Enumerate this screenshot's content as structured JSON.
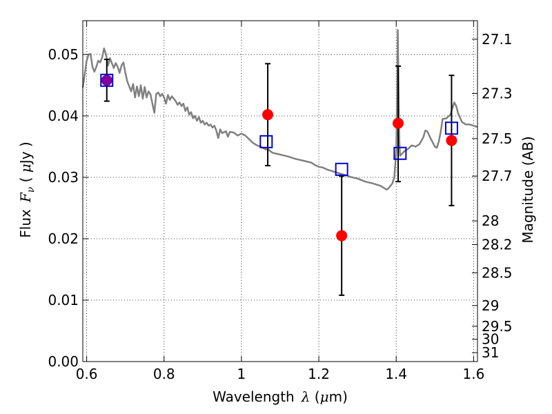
{
  "chart_data": {
    "type": "scatter",
    "xlabel_prefix": "Wavelength",
    "xlabel_symbol": "λ",
    "xlabel_unit_open": " (",
    "xlabel_unit_mu": "μ",
    "xlabel_unit_close": "m)",
    "ylabel_prefix": "Flux",
    "ylabel_symbol": "F",
    "ylabel_subscript": "ν",
    "ylabel_unit_open": " ( ",
    "ylabel_unit_mu": "μ",
    "ylabel_unit_close": "Jy )",
    "y2label": "Magnitude (AB)",
    "xlim": [
      0.59,
      1.61
    ],
    "ylim": [
      0.0,
      0.0555
    ],
    "xticks": [
      {
        "v": 0.6,
        "label": "0.6"
      },
      {
        "v": 0.8,
        "label": "0.8"
      },
      {
        "v": 1.0,
        "label": "1"
      },
      {
        "v": 1.2,
        "label": "1.2"
      },
      {
        "v": 1.4,
        "label": "1.4"
      },
      {
        "v": 1.6,
        "label": "1.6"
      }
    ],
    "yticks": [
      {
        "v": 0.0,
        "label": "0.00"
      },
      {
        "v": 0.01,
        "label": "0.01"
      },
      {
        "v": 0.02,
        "label": "0.02"
      },
      {
        "v": 0.03,
        "label": "0.03"
      },
      {
        "v": 0.04,
        "label": "0.04"
      },
      {
        "v": 0.05,
        "label": "0.05"
      }
    ],
    "y2ticks": [
      {
        "v": 27.1,
        "label": "27.1"
      },
      {
        "v": 27.3,
        "label": "27.3"
      },
      {
        "v": 27.5,
        "label": "27.5"
      },
      {
        "v": 27.7,
        "label": "27.7"
      },
      {
        "v": 28.0,
        "label": "28"
      },
      {
        "v": 28.2,
        "label": "28.2"
      },
      {
        "v": 28.5,
        "label": "28.5"
      },
      {
        "v": 29.0,
        "label": "29"
      },
      {
        "v": 29.5,
        "label": "29.5"
      },
      {
        "v": 30.0,
        "label": "30"
      },
      {
        "v": 31.0,
        "label": "31"
      }
    ],
    "grid": true,
    "colors": {
      "sed": "#808080",
      "observed": "#ff0000",
      "model": "#0000cc",
      "errorbar": "#000000",
      "overlap": "#8000a0"
    },
    "sed_curve": [
      [
        0.59,
        0.0446
      ],
      [
        0.595,
        0.0468
      ],
      [
        0.6,
        0.049
      ],
      [
        0.605,
        0.05
      ],
      [
        0.61,
        0.0501
      ],
      [
        0.615,
        0.048
      ],
      [
        0.62,
        0.0472
      ],
      [
        0.625,
        0.048
      ],
      [
        0.63,
        0.049
      ],
      [
        0.635,
        0.0487
      ],
      [
        0.64,
        0.0495
      ],
      [
        0.645,
        0.051
      ],
      [
        0.65,
        0.05
      ],
      [
        0.655,
        0.0482
      ],
      [
        0.66,
        0.0494
      ],
      [
        0.665,
        0.0486
      ],
      [
        0.67,
        0.0478
      ],
      [
        0.675,
        0.0486
      ],
      [
        0.68,
        0.048
      ],
      [
        0.685,
        0.047
      ],
      [
        0.69,
        0.0482
      ],
      [
        0.695,
        0.0487
      ],
      [
        0.7,
        0.047
      ],
      [
        0.705,
        0.0456
      ],
      [
        0.71,
        0.0448
      ],
      [
        0.715,
        0.044
      ],
      [
        0.72,
        0.0452
      ],
      [
        0.725,
        0.043
      ],
      [
        0.73,
        0.0448
      ],
      [
        0.735,
        0.0432
      ],
      [
        0.74,
        0.045
      ],
      [
        0.745,
        0.0428
      ],
      [
        0.75,
        0.0447
      ],
      [
        0.755,
        0.043
      ],
      [
        0.76,
        0.044
      ],
      [
        0.765,
        0.0435
      ],
      [
        0.77,
        0.042
      ],
      [
        0.775,
        0.0405
      ],
      [
        0.78,
        0.0436
      ],
      [
        0.785,
        0.0438
      ],
      [
        0.79,
        0.0432
      ],
      [
        0.795,
        0.0436
      ],
      [
        0.8,
        0.043
      ],
      [
        0.805,
        0.042
      ],
      [
        0.81,
        0.0434
      ],
      [
        0.815,
        0.0426
      ],
      [
        0.82,
        0.0432
      ],
      [
        0.825,
        0.0428
      ],
      [
        0.83,
        0.0424
      ],
      [
        0.835,
        0.0418
      ],
      [
        0.84,
        0.0422
      ],
      [
        0.845,
        0.0416
      ],
      [
        0.85,
        0.042
      ],
      [
        0.855,
        0.0408
      ],
      [
        0.86,
        0.0414
      ],
      [
        0.865,
        0.0402
      ],
      [
        0.87,
        0.0406
      ],
      [
        0.875,
        0.0396
      ],
      [
        0.88,
        0.04
      ],
      [
        0.885,
        0.0392
      ],
      [
        0.89,
        0.0398
      ],
      [
        0.895,
        0.0389
      ],
      [
        0.9,
        0.0392
      ],
      [
        0.905,
        0.0386
      ],
      [
        0.91,
        0.0389
      ],
      [
        0.915,
        0.0384
      ],
      [
        0.92,
        0.0386
      ],
      [
        0.925,
        0.0381
      ],
      [
        0.93,
        0.0384
      ],
      [
        0.935,
        0.0376
      ],
      [
        0.94,
        0.0364
      ],
      [
        0.945,
        0.0378
      ],
      [
        0.95,
        0.0372
      ],
      [
        0.96,
        0.0375
      ],
      [
        0.965,
        0.0366
      ],
      [
        0.97,
        0.0374
      ],
      [
        0.98,
        0.0373
      ],
      [
        0.99,
        0.0368
      ],
      [
        1.0,
        0.0371
      ],
      [
        1.01,
        0.0368
      ],
      [
        1.02,
        0.0362
      ],
      [
        1.03,
        0.0356
      ],
      [
        1.04,
        0.0352
      ],
      [
        1.05,
        0.035
      ],
      [
        1.06,
        0.0346
      ],
      [
        1.07,
        0.0345
      ],
      [
        1.08,
        0.034
      ],
      [
        1.1,
        0.0337
      ],
      [
        1.12,
        0.0334
      ],
      [
        1.14,
        0.033
      ],
      [
        1.16,
        0.0327
      ],
      [
        1.18,
        0.0324
      ],
      [
        1.19,
        0.032
      ],
      [
        1.2,
        0.0317
      ],
      [
        1.21,
        0.0316
      ],
      [
        1.22,
        0.0313
      ],
      [
        1.24,
        0.0309
      ],
      [
        1.26,
        0.0305
      ],
      [
        1.28,
        0.0301
      ],
      [
        1.3,
        0.0298
      ],
      [
        1.32,
        0.0293
      ],
      [
        1.34,
        0.029
      ],
      [
        1.36,
        0.0286
      ],
      [
        1.37,
        0.0282
      ],
      [
        1.375,
        0.028
      ],
      [
        1.38,
        0.0282
      ],
      [
        1.39,
        0.029
      ],
      [
        1.395,
        0.03
      ],
      [
        1.4,
        0.034
      ],
      [
        1.402,
        0.042
      ],
      [
        1.404,
        0.054
      ],
      [
        1.406,
        0.045
      ],
      [
        1.408,
        0.036
      ],
      [
        1.41,
        0.0335
      ],
      [
        1.42,
        0.0342
      ],
      [
        1.43,
        0.0346
      ],
      [
        1.44,
        0.0352
      ],
      [
        1.45,
        0.035
      ],
      [
        1.46,
        0.0354
      ],
      [
        1.47,
        0.0365
      ],
      [
        1.475,
        0.0376
      ],
      [
        1.48,
        0.0375
      ],
      [
        1.49,
        0.0362
      ],
      [
        1.5,
        0.035
      ],
      [
        1.505,
        0.0348
      ],
      [
        1.51,
        0.0358
      ],
      [
        1.515,
        0.0374
      ],
      [
        1.52,
        0.0395
      ],
      [
        1.53,
        0.0396
      ],
      [
        1.54,
        0.0402
      ],
      [
        1.545,
        0.0412
      ],
      [
        1.55,
        0.0422
      ],
      [
        1.555,
        0.0416
      ],
      [
        1.56,
        0.0404
      ],
      [
        1.57,
        0.039
      ],
      [
        1.58,
        0.0386
      ],
      [
        1.59,
        0.0386
      ],
      [
        1.6,
        0.0384
      ],
      [
        1.61,
        0.0382
      ]
    ],
    "observed": [
      {
        "x": 0.652,
        "y": 0.0458,
        "yerr": [
          0.0424,
          0.0492
        ]
      },
      {
        "x": 1.068,
        "y": 0.0402,
        "yerr": [
          0.0319,
          0.0485
        ]
      },
      {
        "x": 1.259,
        "y": 0.0205,
        "yerr": [
          0.0108,
          0.0302
        ]
      },
      {
        "x": 1.405,
        "y": 0.0388,
        "yerr": [
          0.0293,
          0.0481
        ]
      },
      {
        "x": 1.543,
        "y": 0.036,
        "yerr": [
          0.0254,
          0.0466
        ]
      }
    ],
    "model_points": [
      {
        "x": 0.652,
        "y": 0.0458
      },
      {
        "x": 1.064,
        "y": 0.0358
      },
      {
        "x": 1.259,
        "y": 0.0313
      },
      {
        "x": 1.41,
        "y": 0.0339
      },
      {
        "x": 1.543,
        "y": 0.038
      }
    ]
  }
}
